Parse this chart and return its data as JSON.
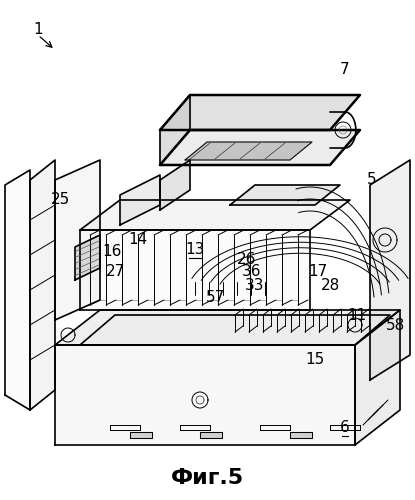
{
  "title": "Фиг.5",
  "label_1": "1",
  "label_5": "5",
  "label_6": "6",
  "label_7": "7",
  "label_11": "11",
  "label_13": "13",
  "label_14": "14",
  "label_15": "15",
  "label_16": "16",
  "label_17": "17",
  "label_25": "25",
  "label_26": "26",
  "label_27": "27",
  "label_28": "28",
  "label_33": "33",
  "label_36": "36",
  "label_57": "57",
  "label_58": "58",
  "bg_color": "#ffffff",
  "line_color": "#000000",
  "title_fontsize": 16,
  "label_fontsize": 11,
  "fig_width": 4.15,
  "fig_height": 5.0,
  "dpi": 100
}
